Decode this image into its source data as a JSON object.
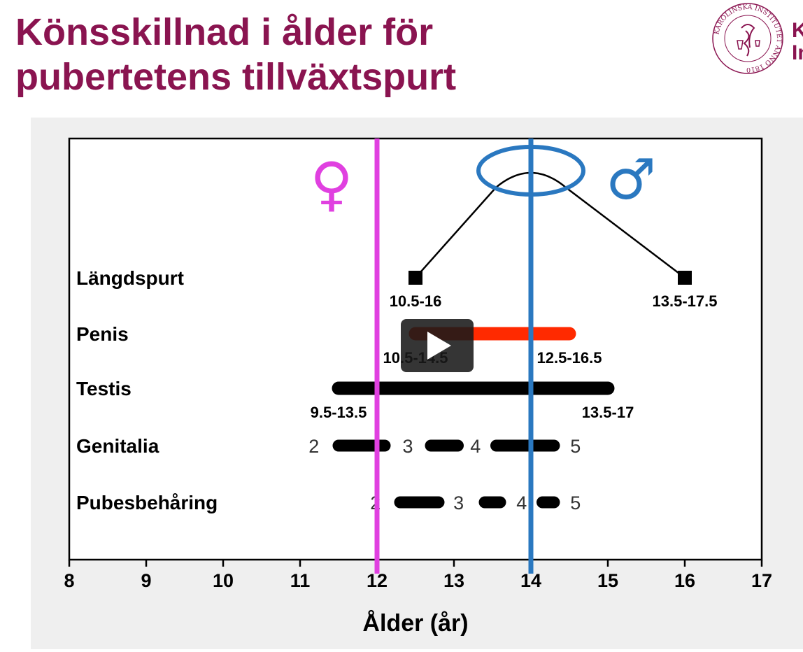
{
  "slide": {
    "title_line1": "Könsskillnad i ålder för",
    "title_line2": "pubertetens tillväxtspurt",
    "logo_seal_text": "KAROLINSKA INSTITUTET ANNO 1810",
    "logo_text_line1": "K",
    "logo_text_line2": "In",
    "title_color": "#8a1450"
  },
  "video": {
    "play_icon": "play-icon"
  },
  "chart_data": {
    "type": "range",
    "xlabel": "Ålder (år)",
    "xlim": [
      8,
      17
    ],
    "xticks": [
      8,
      9,
      10,
      11,
      12,
      13,
      14,
      15,
      16,
      17
    ],
    "colors": {
      "female": "#e040e0",
      "male": "#2a78c0",
      "penis_bar": "#ff2a00",
      "ink": "#000000"
    },
    "female_symbol": "♀",
    "male_symbol": "♂",
    "female_line_x": 12,
    "male_line_x": 14,
    "rows": [
      {
        "label": "Längdspurt",
        "kind": "peak",
        "start": 12.5,
        "peak": 14,
        "end": 16,
        "start_label": "10.5-16",
        "end_label": "13.5-17.5"
      },
      {
        "label": "Penis",
        "kind": "bar",
        "color": "#ff2a00",
        "start": 12.5,
        "end": 14.5,
        "start_label": "10.5-14.5",
        "end_label": "12.5-16.5"
      },
      {
        "label": "Testis",
        "kind": "bar",
        "color": "#000000",
        "start": 11.5,
        "end": 15,
        "start_label": "9.5-13.5",
        "end_label": "13.5-17"
      },
      {
        "label": "Genitalia",
        "kind": "stages",
        "segments": [
          [
            11.5,
            12.1
          ],
          [
            12.7,
            13.05
          ],
          [
            13.55,
            14.3
          ]
        ],
        "stage_labels": [
          {
            "text": "2",
            "x": 11.18
          },
          {
            "text": "3",
            "x": 12.4
          },
          {
            "text": "4",
            "x": 13.28
          },
          {
            "text": "5",
            "x": 14.58
          }
        ]
      },
      {
        "label": "Pubesbehåring",
        "kind": "stages",
        "segments": [
          [
            12.3,
            12.8
          ],
          [
            13.4,
            13.6
          ],
          [
            14.15,
            14.3
          ]
        ],
        "stage_labels": [
          {
            "text": "2",
            "x": 11.98
          },
          {
            "text": "3",
            "x": 13.06
          },
          {
            "text": "4",
            "x": 13.88
          },
          {
            "text": "5",
            "x": 14.58
          }
        ]
      }
    ]
  }
}
